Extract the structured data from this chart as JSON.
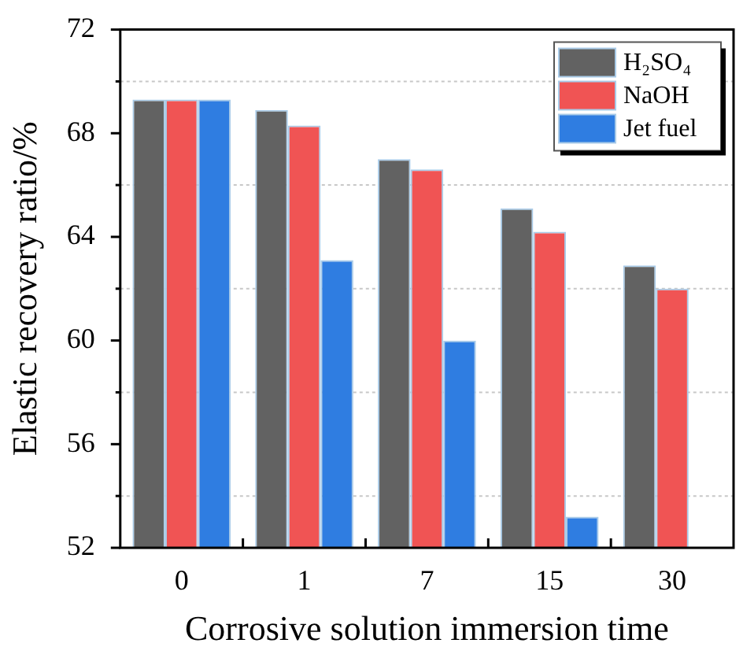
{
  "chart_data": {
    "type": "bar",
    "xlabel": "Corrosive solution immersion time",
    "ylabel": "Elastic recovery ratio/%",
    "categories": [
      "0",
      "1",
      "7",
      "15",
      "30"
    ],
    "series": [
      {
        "name": "H₂SO₄",
        "color": "#626262",
        "values": [
          69.3,
          68.9,
          67.0,
          65.1,
          62.9
        ]
      },
      {
        "name": "NaOH",
        "color": "#f05454",
        "values": [
          69.3,
          68.3,
          66.6,
          64.2,
          62.0
        ]
      },
      {
        "name": "Jet fuel",
        "color": "#2f7de1",
        "values": [
          69.3,
          63.1,
          60.0,
          53.2,
          null
        ]
      }
    ],
    "ylim": [
      52,
      72
    ],
    "yticks": [
      52,
      {
        "value": 54,
        "label": null
      },
      56,
      {
        "value": 58,
        "label": null
      },
      60,
      {
        "value": 62,
        "label": null
      },
      64,
      {
        "value": 66,
        "label": null
      },
      68,
      {
        "value": 70,
        "label": null
      },
      72
    ],
    "grid": "y",
    "legend": "top right"
  }
}
